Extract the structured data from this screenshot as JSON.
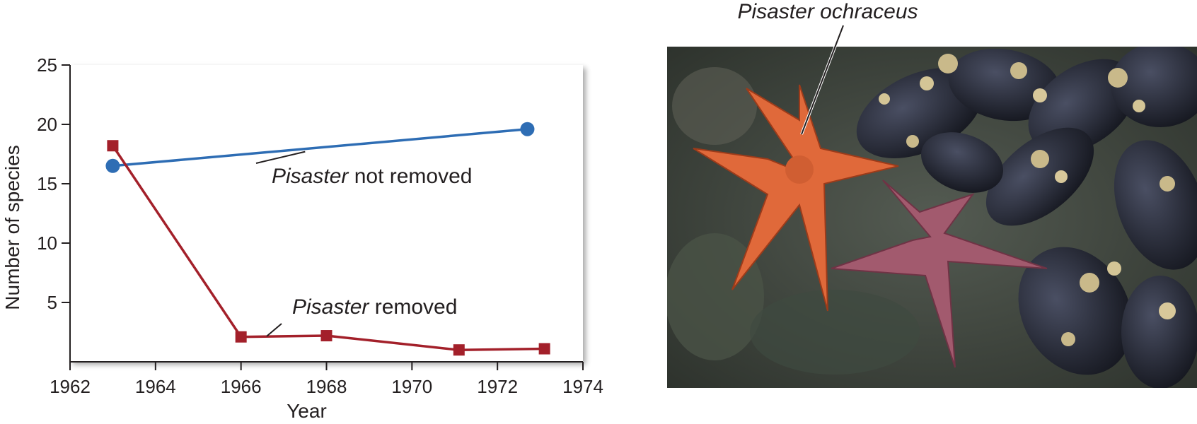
{
  "chart_data": {
    "type": "line",
    "xlabel": "Year",
    "ylabel": "Number of species",
    "xlim": [
      1962,
      1974
    ],
    "ylim": [
      0,
      25
    ],
    "xticks": [
      1962,
      1964,
      1966,
      1968,
      1970,
      1972,
      1974
    ],
    "yticks": [
      5,
      10,
      15,
      20,
      25
    ],
    "grid": false,
    "series": [
      {
        "name": "Pisaster not removed",
        "name_italic": "Pisaster",
        "name_rest": " not removed",
        "marker": "circle",
        "color": "#2e6db4",
        "x": [
          1963,
          1972.7
        ],
        "y": [
          16.5,
          19.6
        ]
      },
      {
        "name": "Pisaster removed",
        "name_italic": "Pisaster",
        "name_rest": " removed",
        "marker": "square",
        "color": "#a3202a",
        "x": [
          1963,
          1966,
          1968,
          1971.1,
          1973.1
        ],
        "y": [
          18.2,
          2.1,
          2.2,
          1.0,
          1.1
        ]
      }
    ]
  },
  "photo": {
    "label": "Pisaster ochraceus",
    "colors": {
      "rock": "#3b4038",
      "sea_star_orange": "#e0693a",
      "sea_star_purple": "#a25a6e",
      "mussel": "#2b2e3a",
      "barnacle": "#c9b98a"
    }
  }
}
